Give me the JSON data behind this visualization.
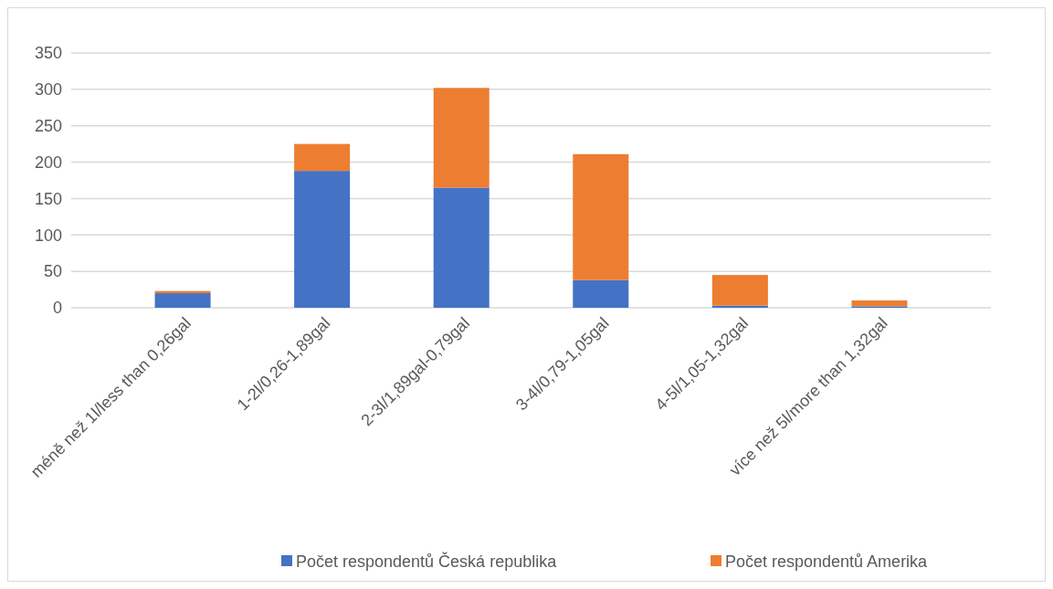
{
  "chart_data": {
    "type": "bar",
    "stacked": true,
    "categories": [
      "méně než 1l/less than 0,26gal",
      "1-2l/0,26-1,89gal",
      "2-3l/1,89gal-0,79gal",
      "3-4l/0,79-1,05gal",
      "4-5l/1,05-1,32gal",
      "více než 5l/more than 1,32gal"
    ],
    "series": [
      {
        "name": "Počet respondentů Česká republika",
        "color": "#4472c4",
        "values": [
          20,
          188,
          165,
          38,
          3,
          2
        ]
      },
      {
        "name": "Počet respondentů Amerika",
        "color": "#ed7d31",
        "values": [
          3,
          37,
          137,
          173,
          42,
          8
        ]
      }
    ],
    "ylim": [
      0,
      350
    ],
    "yticks": [
      0,
      50,
      100,
      150,
      200,
      250,
      300,
      350
    ],
    "grid": "y",
    "legend": "bottom"
  }
}
